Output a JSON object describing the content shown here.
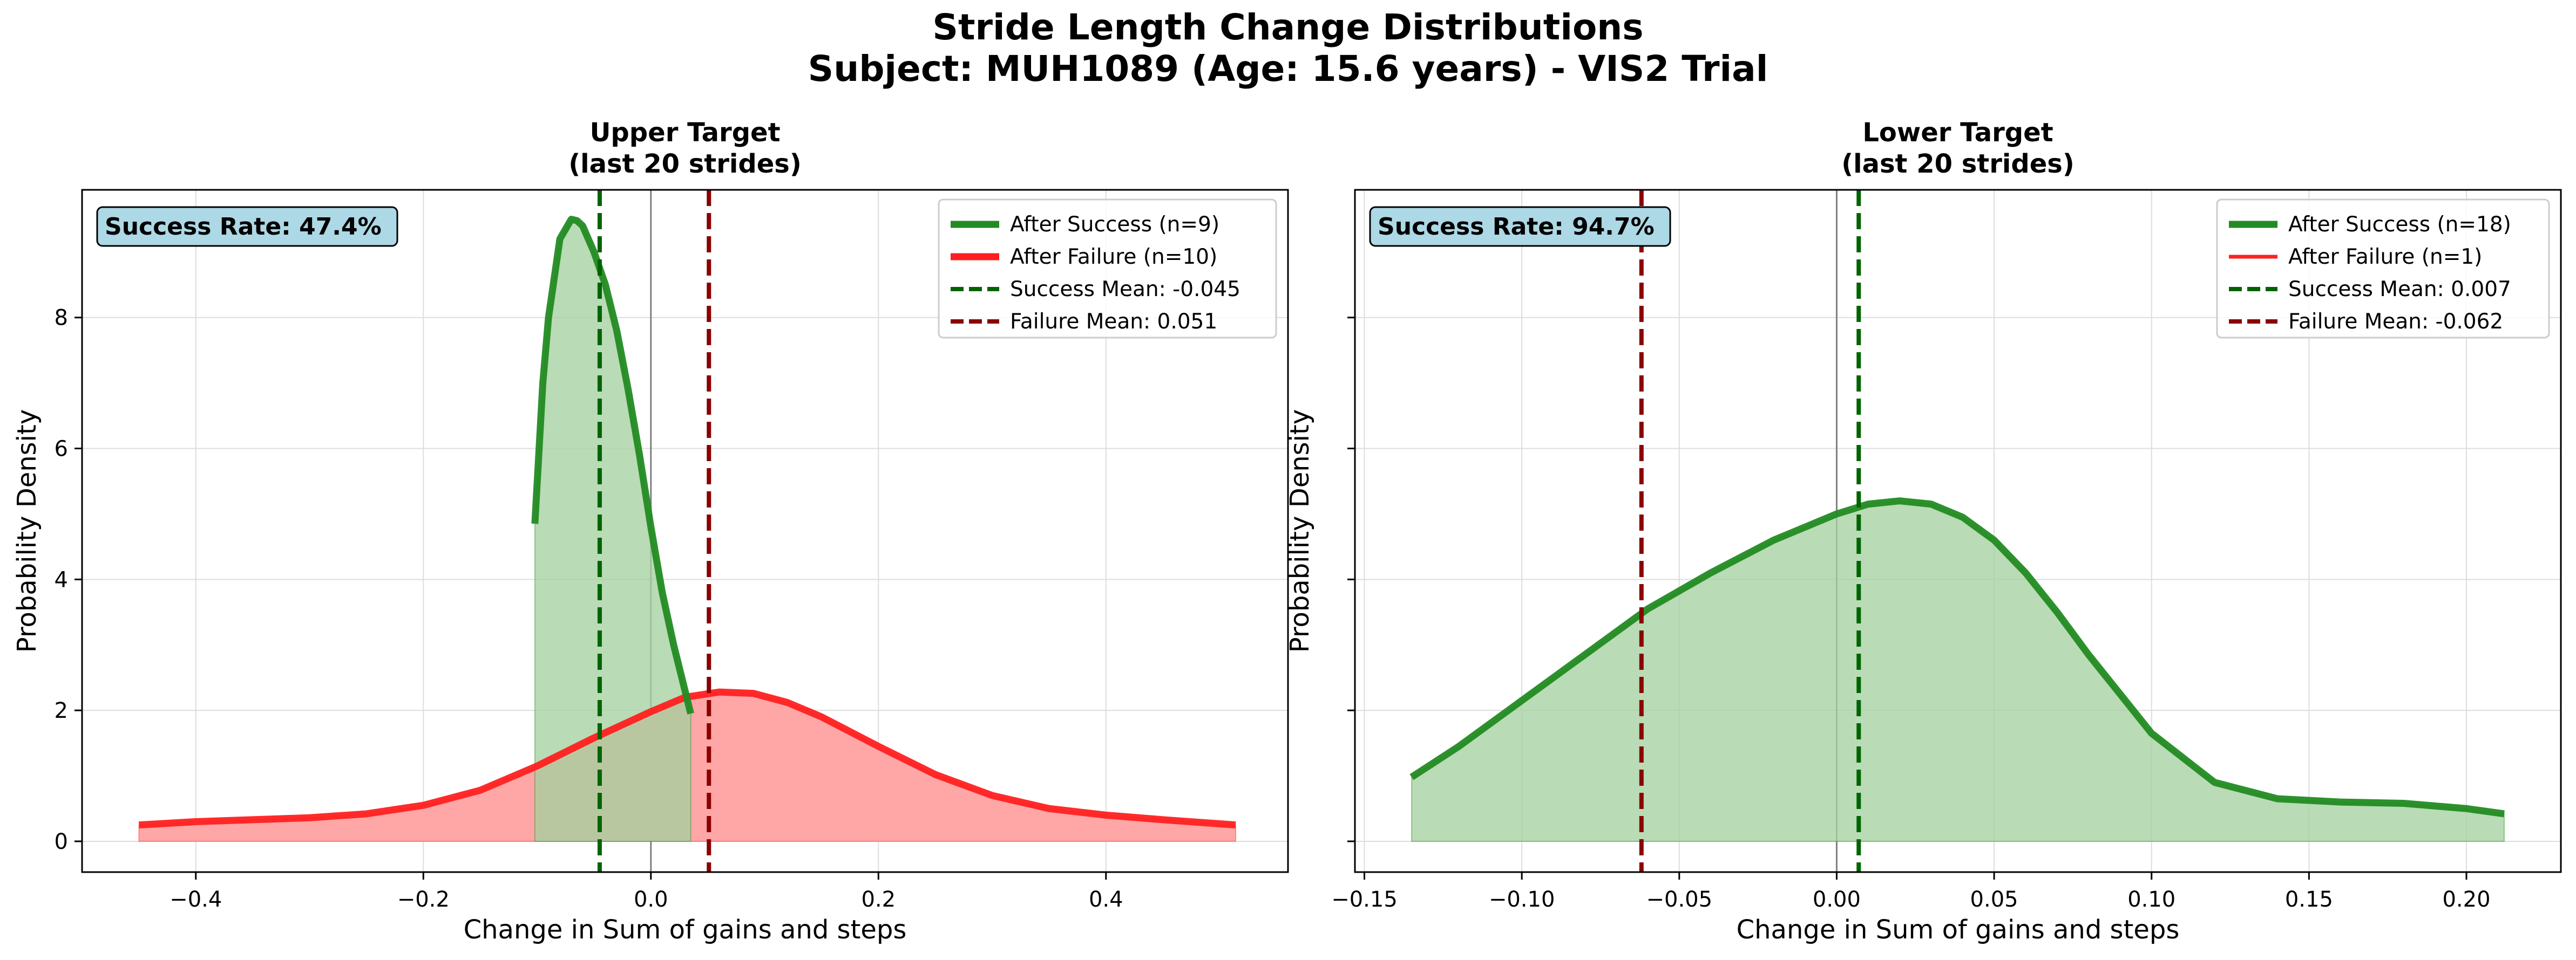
{
  "figure": {
    "title_line1": "Stride Length Change Distributions",
    "title_line2": "Subject: MUH1089 (Age: 15.6 years) - VIS2 Trial"
  },
  "colors": {
    "success_line": "#228b22",
    "success_fill": "#a5d1a0",
    "failure_line": "#ff2020",
    "failure_fill": "#ffa6a6",
    "overlap_fill": "#c08a6a",
    "success_mean": "#006400",
    "failure_mean": "#8b0000",
    "badge_bg": "#add8e6"
  },
  "chart_data": [
    {
      "type": "line",
      "title_line1": "Upper Target",
      "title_line2": "(last 20 strides)",
      "xlabel": "Change in Sum of gains and steps",
      "ylabel": "Probability Density",
      "xlim": [
        -0.5,
        0.56
      ],
      "ylim": [
        -0.47,
        9.95
      ],
      "xticks": [
        -0.4,
        -0.2,
        0.0,
        0.2,
        0.4
      ],
      "xtick_labels": [
        "−0.4",
        "−0.2",
        "0.0",
        "0.2",
        "0.4"
      ],
      "yticks": [
        0,
        2,
        4,
        6,
        8
      ],
      "ytick_labels": [
        "0",
        "2",
        "4",
        "6",
        "8"
      ],
      "grid": true,
      "legend_position": "top-right",
      "success_rate_label": "Success Rate: 47.4%",
      "series": [
        {
          "name": "After Success (n=9)",
          "role": "success",
          "line_width": "thick",
          "x": [
            -0.102,
            -0.095,
            -0.09,
            -0.08,
            -0.07,
            -0.065,
            -0.06,
            -0.05,
            -0.04,
            -0.03,
            -0.02,
            -0.01,
            0.0,
            0.01,
            0.02,
            0.03,
            0.035
          ],
          "y": [
            4.85,
            7.0,
            8.0,
            9.2,
            9.5,
            9.48,
            9.4,
            9.0,
            8.5,
            7.8,
            6.9,
            5.9,
            4.8,
            3.8,
            3.0,
            2.3,
            1.95
          ]
        },
        {
          "name": "After Failure (n=10)",
          "role": "failure",
          "line_width": "thick",
          "x": [
            -0.45,
            -0.4,
            -0.35,
            -0.3,
            -0.25,
            -0.2,
            -0.15,
            -0.1,
            -0.05,
            0.0,
            0.03,
            0.06,
            0.09,
            0.12,
            0.15,
            0.2,
            0.25,
            0.3,
            0.35,
            0.4,
            0.45,
            0.514
          ],
          "y": [
            0.25,
            0.3,
            0.33,
            0.36,
            0.42,
            0.55,
            0.78,
            1.15,
            1.58,
            1.98,
            2.2,
            2.28,
            2.26,
            2.12,
            1.9,
            1.45,
            1.02,
            0.7,
            0.5,
            0.4,
            0.33,
            0.25
          ]
        }
      ],
      "mean_lines": [
        {
          "name": "Success Mean: -0.045",
          "value": -0.045,
          "role": "success"
        },
        {
          "name": "Failure Mean: 0.051",
          "value": 0.051,
          "role": "failure"
        }
      ]
    },
    {
      "type": "line",
      "title_line1": "Lower Target",
      "title_line2": "(last 20 strides)",
      "xlabel": "Change in Sum of gains and steps",
      "ylabel": "Probability Density",
      "xlim": [
        -0.153,
        0.23
      ],
      "ylim": [
        -0.47,
        9.95
      ],
      "xticks": [
        -0.15,
        -0.1,
        -0.05,
        0.0,
        0.05,
        0.1,
        0.15,
        0.2
      ],
      "xtick_labels": [
        "−0.15",
        "−0.10",
        "−0.05",
        "0.00",
        "0.05",
        "0.10",
        "0.15",
        "0.20"
      ],
      "yticks": [
        0,
        2,
        4,
        6,
        8
      ],
      "ytick_labels": [
        "",
        "",
        "",
        "",
        ""
      ],
      "grid": true,
      "legend_position": "top-right",
      "success_rate_label": "Success Rate: 94.7%",
      "series": [
        {
          "name": "After Success (n=18)",
          "role": "success",
          "line_width": "thick",
          "x": [
            -0.135,
            -0.12,
            -0.1,
            -0.08,
            -0.06,
            -0.04,
            -0.02,
            0.0,
            0.01,
            0.02,
            0.03,
            0.04,
            0.05,
            0.06,
            0.07,
            0.08,
            0.1,
            0.12,
            0.14,
            0.16,
            0.18,
            0.2,
            0.212
          ],
          "y": [
            0.98,
            1.45,
            2.15,
            2.85,
            3.55,
            4.1,
            4.6,
            5.0,
            5.15,
            5.2,
            5.15,
            4.95,
            4.6,
            4.1,
            3.5,
            2.85,
            1.65,
            0.9,
            0.65,
            0.6,
            0.58,
            0.5,
            0.42
          ]
        },
        {
          "name": "After Failure (n=1)",
          "role": "failure",
          "line_width": "thin",
          "x": [],
          "y": []
        }
      ],
      "mean_lines": [
        {
          "name": "Success Mean: 0.007",
          "value": 0.007,
          "role": "success"
        },
        {
          "name": "Failure Mean: -0.062",
          "value": -0.062,
          "role": "failure"
        }
      ]
    }
  ]
}
